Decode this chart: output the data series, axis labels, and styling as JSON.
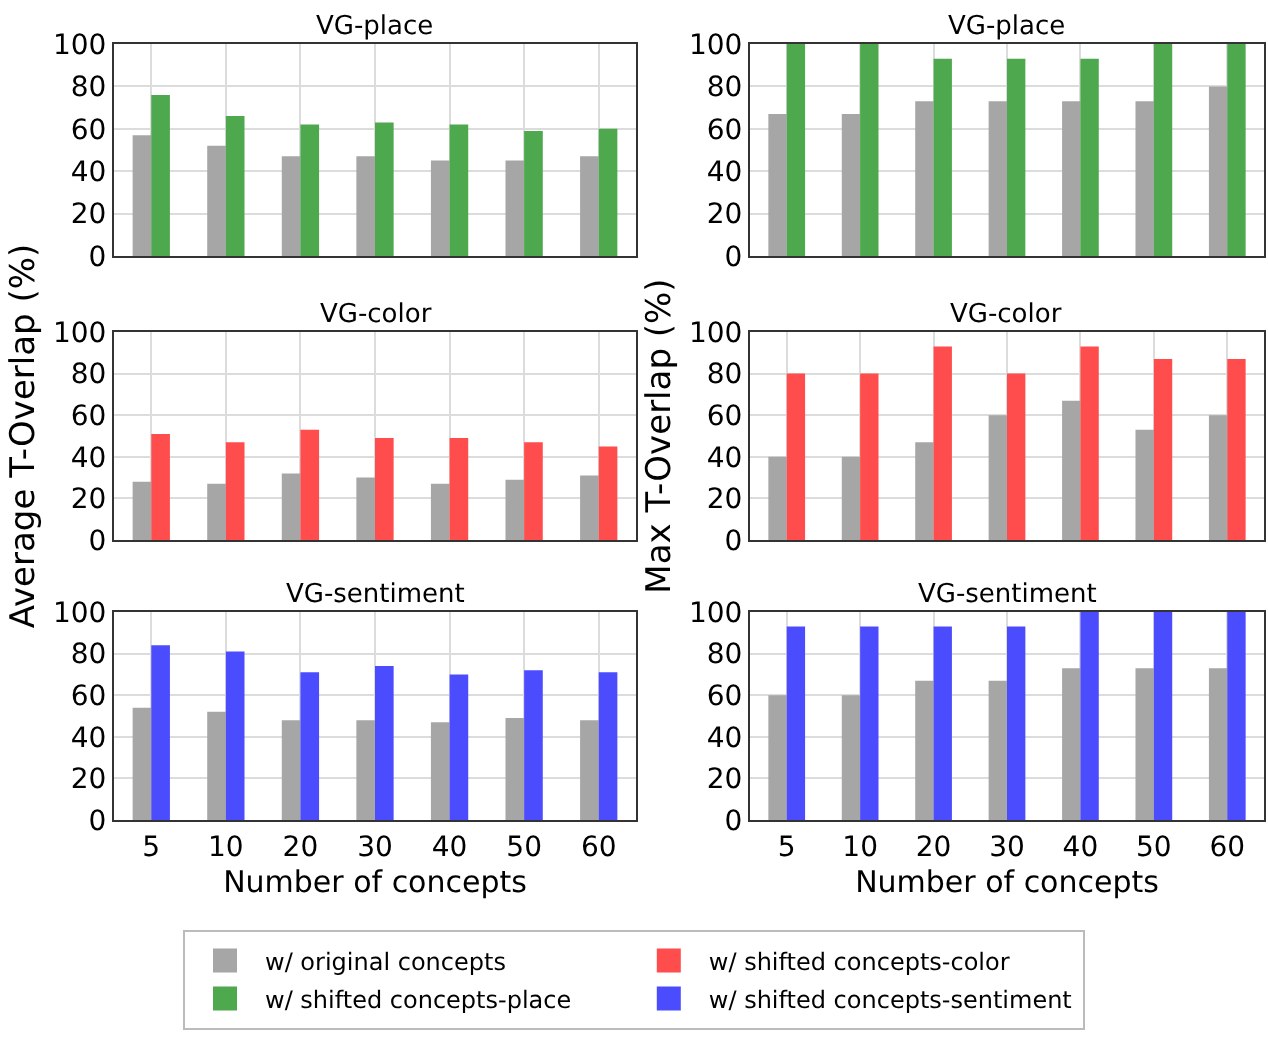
{
  "chart_data": [
    {
      "type": "bar",
      "title": "VG-place",
      "categories": [
        "5",
        "10",
        "20",
        "30",
        "40",
        "50",
        "60"
      ],
      "ylim": [
        0,
        100
      ],
      "yticks": [
        0,
        20,
        40,
        60,
        80,
        100
      ],
      "grid": true,
      "tick_labels": "y",
      "legend": "bottom",
      "series": [
        {
          "name": "w/ original concepts",
          "color": "#a6a6a6",
          "values": [
            57,
            52,
            47,
            47,
            45,
            45,
            47
          ]
        },
        {
          "name": "w/ shifted concepts-place",
          "color": "#4ea84e",
          "values": [
            76,
            66,
            62,
            63,
            62,
            59,
            60
          ]
        }
      ]
    },
    {
      "type": "bar",
      "title": "VG-place",
      "categories": [
        "5",
        "10",
        "20",
        "30",
        "40",
        "50",
        "60"
      ],
      "ylim": [
        0,
        100
      ],
      "yticks": [
        0,
        20,
        40,
        60,
        80,
        100
      ],
      "grid": true,
      "tick_labels": "y",
      "legend": "bottom",
      "series": [
        {
          "name": "w/ original concepts",
          "color": "#a6a6a6",
          "values": [
            67,
            67,
            73,
            73,
            73,
            73,
            80
          ]
        },
        {
          "name": "w/ shifted concepts-place",
          "color": "#4ea84e",
          "values": [
            100,
            100,
            93,
            93,
            93,
            100,
            100
          ]
        }
      ]
    },
    {
      "type": "bar",
      "title": "VG-color",
      "ylabel": "Average T-Overlap (%)",
      "categories": [
        "5",
        "10",
        "20",
        "30",
        "40",
        "50",
        "60"
      ],
      "ylim": [
        0,
        100
      ],
      "yticks": [
        0,
        20,
        40,
        60,
        80,
        100
      ],
      "grid": true,
      "tick_labels": "y",
      "legend": "bottom",
      "series": [
        {
          "name": "w/ original concepts",
          "color": "#a6a6a6",
          "values": [
            28,
            27,
            32,
            30,
            27,
            29,
            31
          ]
        },
        {
          "name": "w/ shifted concepts-color",
          "color": "#ff4d4d",
          "values": [
            51,
            47,
            53,
            49,
            49,
            47,
            45
          ]
        }
      ]
    },
    {
      "type": "bar",
      "title": "VG-color",
      "ylabel": "Max T-Overlap (%)",
      "categories": [
        "5",
        "10",
        "20",
        "30",
        "40",
        "50",
        "60"
      ],
      "ylim": [
        0,
        100
      ],
      "yticks": [
        0,
        20,
        40,
        60,
        80,
        100
      ],
      "grid": true,
      "tick_labels": "y",
      "legend": "bottom",
      "series": [
        {
          "name": "w/ original concepts",
          "color": "#a6a6a6",
          "values": [
            40,
            40,
            47,
            60,
            67,
            53,
            60
          ]
        },
        {
          "name": "w/ shifted concepts-color",
          "color": "#ff4d4d",
          "values": [
            80,
            80,
            93,
            80,
            93,
            87,
            87
          ]
        }
      ]
    },
    {
      "type": "bar",
      "title": "VG-sentiment",
      "xlabel": "Number of concepts",
      "categories": [
        "5",
        "10",
        "20",
        "30",
        "40",
        "50",
        "60"
      ],
      "ylim": [
        0,
        100
      ],
      "yticks": [
        0,
        20,
        40,
        60,
        80,
        100
      ],
      "grid": true,
      "legend": "bottom",
      "series": [
        {
          "name": "w/ original concepts",
          "color": "#a6a6a6",
          "values": [
            54,
            52,
            48,
            48,
            47,
            49,
            48
          ]
        },
        {
          "name": "w/ shifted concepts-sentiment",
          "color": "#4c4cff",
          "values": [
            84,
            81,
            71,
            74,
            70,
            72,
            71
          ]
        }
      ]
    },
    {
      "type": "bar",
      "title": "VG-sentiment",
      "xlabel": "Number of concepts",
      "categories": [
        "5",
        "10",
        "20",
        "30",
        "40",
        "50",
        "60"
      ],
      "ylim": [
        0,
        100
      ],
      "yticks": [
        0,
        20,
        40,
        60,
        80,
        100
      ],
      "grid": true,
      "legend": "bottom",
      "series": [
        {
          "name": "w/ original concepts",
          "color": "#a6a6a6",
          "values": [
            60,
            60,
            67,
            67,
            73,
            73,
            73
          ]
        },
        {
          "name": "w/ shifted concepts-sentiment",
          "color": "#4c4cff",
          "values": [
            93,
            93,
            93,
            93,
            100,
            100,
            100
          ]
        }
      ]
    }
  ]
}
